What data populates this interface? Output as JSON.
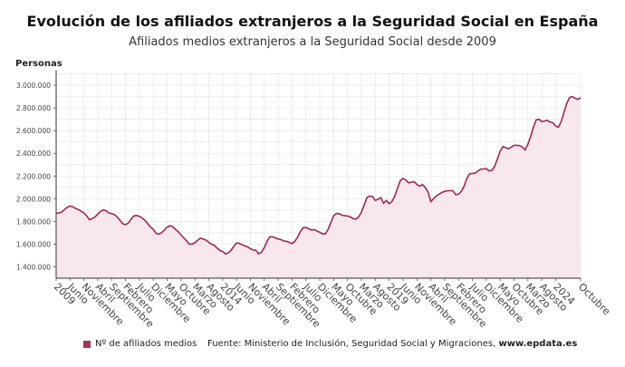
{
  "chart_data": {
    "type": "area",
    "title": "Evolución de los afiliados extranjeros a la Seguridad Social en España",
    "subtitle": "Afiliados medios extranjeros a la Seguridad Social desde 2009",
    "ylabel": "Personas",
    "xlabel": "",
    "ylim": [
      1300000,
      3100000
    ],
    "y_ticks": [
      {
        "value": 1400000,
        "label": "1.400.000"
      },
      {
        "value": 1600000,
        "label": "1.600.000"
      },
      {
        "value": 1800000,
        "label": "1.800.000"
      },
      {
        "value": 2000000,
        "label": "2.000.000"
      },
      {
        "value": 2200000,
        "label": "2.200.000"
      },
      {
        "value": 2400000,
        "label": "2.400.000"
      },
      {
        "value": 2600000,
        "label": "2.600.000"
      },
      {
        "value": 2800000,
        "label": "2.800.000"
      },
      {
        "value": 3000000,
        "label": "3.000.000"
      }
    ],
    "grid": true,
    "legend_position": "bottom-left",
    "colors": {
      "line": "#a0284f",
      "fill": "#f8e8ee",
      "legend": "#a8325a"
    },
    "x_ticks": [
      {
        "x": "2009-01",
        "label": "2009"
      },
      {
        "x": "2009-06",
        "label": "Junio"
      },
      {
        "x": "2009-11",
        "label": "Noviembre"
      },
      {
        "x": "2010-04",
        "label": "Abril"
      },
      {
        "x": "2010-09",
        "label": "Septiembre"
      },
      {
        "x": "2011-02",
        "label": "Febrero"
      },
      {
        "x": "2011-07",
        "label": "Julio"
      },
      {
        "x": "2011-12",
        "label": "Diciembre"
      },
      {
        "x": "2012-05",
        "label": "Mayo"
      },
      {
        "x": "2012-10",
        "label": "Octubre"
      },
      {
        "x": "2013-03",
        "label": "Marzo"
      },
      {
        "x": "2013-08",
        "label": "Agosto"
      },
      {
        "x": "2014-01",
        "label": "2014"
      },
      {
        "x": "2014-06",
        "label": "Junio"
      },
      {
        "x": "2014-11",
        "label": "Noviembre"
      },
      {
        "x": "2015-04",
        "label": "Abril"
      },
      {
        "x": "2015-09",
        "label": "Septiembre"
      },
      {
        "x": "2016-02",
        "label": "Febrero"
      },
      {
        "x": "2016-07",
        "label": "Julio"
      },
      {
        "x": "2016-12",
        "label": "Diciembre"
      },
      {
        "x": "2017-05",
        "label": "Mayo"
      },
      {
        "x": "2017-10",
        "label": "Octubre"
      },
      {
        "x": "2018-03",
        "label": "Marzo"
      },
      {
        "x": "2018-08",
        "label": "Agosto"
      },
      {
        "x": "2019-01",
        "label": "2019"
      },
      {
        "x": "2019-06",
        "label": "Junio"
      },
      {
        "x": "2019-11",
        "label": "Noviembre"
      },
      {
        "x": "2020-04",
        "label": "Abril"
      },
      {
        "x": "2020-09",
        "label": "Septiembre"
      },
      {
        "x": "2021-02",
        "label": "Febrero"
      },
      {
        "x": "2021-07",
        "label": "Julio"
      },
      {
        "x": "2021-12",
        "label": "Diciembre"
      },
      {
        "x": "2022-05",
        "label": "Mayo"
      },
      {
        "x": "2022-10",
        "label": "Octubre"
      },
      {
        "x": "2023-03",
        "label": "Marzo"
      },
      {
        "x": "2023-08",
        "label": "Agosto"
      },
      {
        "x": "2024-01",
        "label": "2024"
      },
      {
        "x": "2024-10",
        "label": "Octubre"
      }
    ],
    "x": [
      "2009-01",
      "2009-02",
      "2009-03",
      "2009-04",
      "2009-05",
      "2009-06",
      "2009-07",
      "2009-08",
      "2009-09",
      "2009-10",
      "2009-11",
      "2009-12",
      "2010-01",
      "2010-02",
      "2010-03",
      "2010-04",
      "2010-05",
      "2010-06",
      "2010-07",
      "2010-08",
      "2010-09",
      "2010-10",
      "2010-11",
      "2010-12",
      "2011-01",
      "2011-02",
      "2011-03",
      "2011-04",
      "2011-05",
      "2011-06",
      "2011-07",
      "2011-08",
      "2011-09",
      "2011-10",
      "2011-11",
      "2011-12",
      "2012-01",
      "2012-02",
      "2012-03",
      "2012-04",
      "2012-05",
      "2012-06",
      "2012-07",
      "2012-08",
      "2012-09",
      "2012-10",
      "2012-11",
      "2012-12",
      "2013-01",
      "2013-02",
      "2013-03",
      "2013-04",
      "2013-05",
      "2013-06",
      "2013-07",
      "2013-08",
      "2013-09",
      "2013-10",
      "2013-11",
      "2013-12",
      "2014-01",
      "2014-02",
      "2014-03",
      "2014-04",
      "2014-05",
      "2014-06",
      "2014-07",
      "2014-08",
      "2014-09",
      "2014-10",
      "2014-11",
      "2014-12",
      "2015-01",
      "2015-02",
      "2015-03",
      "2015-04",
      "2015-05",
      "2015-06",
      "2015-07",
      "2015-08",
      "2015-09",
      "2015-10",
      "2015-11",
      "2015-12",
      "2016-01",
      "2016-02",
      "2016-03",
      "2016-04",
      "2016-05",
      "2016-06",
      "2016-07",
      "2016-08",
      "2016-09",
      "2016-10",
      "2016-11",
      "2016-12",
      "2017-01",
      "2017-02",
      "2017-03",
      "2017-04",
      "2017-05",
      "2017-06",
      "2017-07",
      "2017-08",
      "2017-09",
      "2017-10",
      "2017-11",
      "2017-12",
      "2018-01",
      "2018-02",
      "2018-03",
      "2018-04",
      "2018-05",
      "2018-06",
      "2018-07",
      "2018-08",
      "2018-09",
      "2018-10",
      "2018-11",
      "2018-12",
      "2019-01",
      "2019-02",
      "2019-03",
      "2019-04",
      "2019-05",
      "2019-06",
      "2019-07",
      "2019-08",
      "2019-09",
      "2019-10",
      "2019-11",
      "2019-12",
      "2020-01",
      "2020-02",
      "2020-03",
      "2020-04",
      "2020-05",
      "2020-06",
      "2020-07",
      "2020-08",
      "2020-09",
      "2020-10",
      "2020-11",
      "2020-12",
      "2021-01",
      "2021-02",
      "2021-03",
      "2021-04",
      "2021-05",
      "2021-06",
      "2021-07",
      "2021-08",
      "2021-09",
      "2021-10",
      "2021-11",
      "2021-12",
      "2022-01",
      "2022-02",
      "2022-03",
      "2022-04",
      "2022-05",
      "2022-06",
      "2022-07",
      "2022-08",
      "2022-09",
      "2022-10",
      "2022-11",
      "2022-12",
      "2023-01",
      "2023-02",
      "2023-03",
      "2023-04",
      "2023-05",
      "2023-06",
      "2023-07",
      "2023-08",
      "2023-09",
      "2023-10",
      "2023-11",
      "2023-12",
      "2024-01",
      "2024-02",
      "2024-03",
      "2024-04",
      "2024-05",
      "2024-06",
      "2024-07",
      "2024-08",
      "2024-09",
      "2024-10"
    ],
    "series": [
      {
        "name": "Nº de afiliados medios",
        "values": [
          1872000,
          1874000,
          1882000,
          1905000,
          1925000,
          1935000,
          1930000,
          1915000,
          1905000,
          1890000,
          1875000,
          1850000,
          1815000,
          1825000,
          1840000,
          1865000,
          1890000,
          1902000,
          1895000,
          1875000,
          1868000,
          1860000,
          1840000,
          1810000,
          1780000,
          1772000,
          1785000,
          1820000,
          1848000,
          1852000,
          1845000,
          1830000,
          1810000,
          1780000,
          1750000,
          1730000,
          1695000,
          1688000,
          1700000,
          1725000,
          1750000,
          1762000,
          1755000,
          1730000,
          1710000,
          1680000,
          1655000,
          1630000,
          1600000,
          1600000,
          1612000,
          1635000,
          1652000,
          1645000,
          1635000,
          1615000,
          1600000,
          1590000,
          1565000,
          1545000,
          1535000,
          1515000,
          1522000,
          1545000,
          1580000,
          1610000,
          1608000,
          1595000,
          1585000,
          1575000,
          1560000,
          1548000,
          1545000,
          1515000,
          1530000,
          1570000,
          1625000,
          1665000,
          1665000,
          1655000,
          1645000,
          1640000,
          1628000,
          1625000,
          1615000,
          1605000,
          1625000,
          1660000,
          1710000,
          1745000,
          1748000,
          1735000,
          1725000,
          1728000,
          1715000,
          1705000,
          1690000,
          1690000,
          1730000,
          1790000,
          1850000,
          1870000,
          1868000,
          1855000,
          1850000,
          1848000,
          1840000,
          1825000,
          1820000,
          1840000,
          1880000,
          1945000,
          2010000,
          2024000,
          2020000,
          1985000,
          1995000,
          2010000,
          1960000,
          1985000,
          1955000,
          1975000,
          2020000,
          2090000,
          2160000,
          2180000,
          2165000,
          2140000,
          2145000,
          2150000,
          2125000,
          2110000,
          2125000,
          2100000,
          2060000,
          1975000,
          2000000,
          2025000,
          2040000,
          2055000,
          2065000,
          2070000,
          2070000,
          2070000,
          2035000,
          2040000,
          2065000,
          2110000,
          2180000,
          2220000,
          2222000,
          2225000,
          2245000,
          2260000,
          2262000,
          2265000,
          2245000,
          2250000,
          2285000,
          2350000,
          2420000,
          2460000,
          2450000,
          2440000,
          2455000,
          2470000,
          2470000,
          2468000,
          2455000,
          2430000,
          2480000,
          2550000,
          2630000,
          2695000,
          2700000,
          2680000,
          2685000,
          2690000,
          2675000,
          2670000,
          2640000,
          2630000,
          2680000,
          2760000,
          2840000,
          2890000,
          2900000,
          2885000,
          2875000,
          2890000
        ]
      }
    ]
  },
  "legend": {
    "label": "Nº de afiliados medios"
  },
  "source": {
    "text": "Fuente: Ministerio de Inclusión, Seguridad Social y Migraciones, ",
    "brand": "www.epdata.es"
  }
}
